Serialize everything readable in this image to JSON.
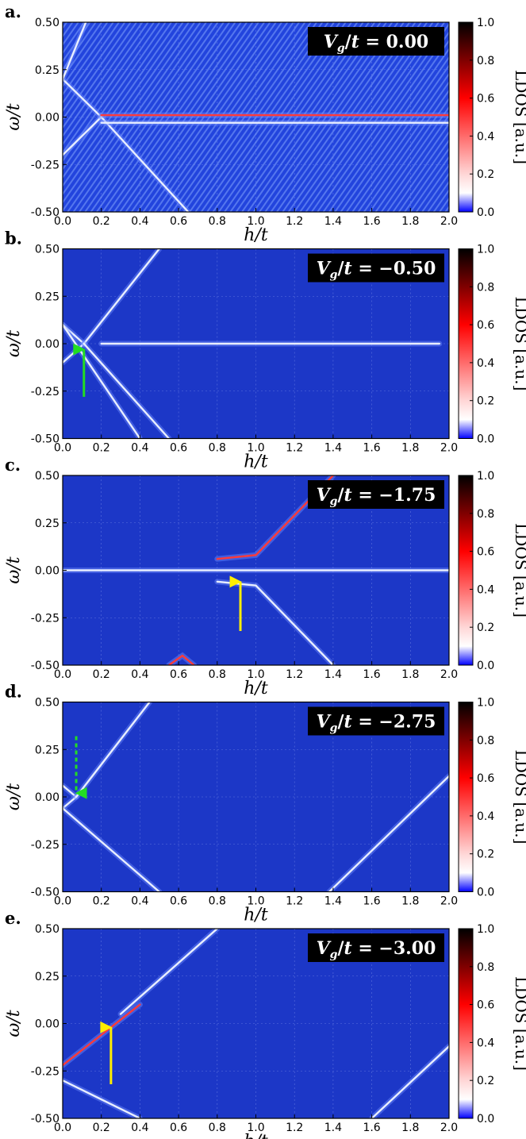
{
  "figure": {
    "panel_letters": [
      "a.",
      "b.",
      "c.",
      "d.",
      "e."
    ],
    "xlabel": "h/t",
    "ylabel": "ω/t",
    "colorbar_label": "LDOS [a.u.]",
    "colorbar_ticks": [
      "0.0",
      "0.2",
      "0.4",
      "0.6",
      "0.8",
      "1.0"
    ],
    "x_ticks": [
      "0.0",
      "0.2",
      "0.4",
      "0.6",
      "0.8",
      "1.0",
      "1.2",
      "1.4",
      "1.6",
      "1.8",
      "2.0"
    ],
    "y_ticks": [
      "-0.50",
      "-0.25",
      "0.00",
      "0.25",
      "0.50"
    ],
    "colors": {
      "background": "#1c37c7",
      "low": "#0000ff",
      "mid": "#ffffff",
      "high": "#ff0000",
      "max": "#000000",
      "green_arrow": "#22dd22",
      "yellow_arrow": "#ffee00"
    }
  },
  "chart_data": [
    {
      "type": "heatmap",
      "panel": "a.",
      "annotation": "V_g/t = 0.00",
      "xlabel": "h/t",
      "ylabel": "ω/t",
      "xlim": [
        0,
        2
      ],
      "ylim": [
        -0.5,
        0.5
      ],
      "zlim": [
        0,
        1
      ],
      "features": [
        {
          "kind": "line",
          "points": [
            [
              0,
              0.2
            ],
            [
              0.2,
              0
            ]
          ],
          "intensity": 0.3
        },
        {
          "kind": "line",
          "points": [
            [
              0,
              -0.2
            ],
            [
              0.2,
              0
            ]
          ],
          "intensity": 0.3
        },
        {
          "kind": "line",
          "points": [
            [
              0,
              0.2
            ],
            [
              0.12,
              0.5
            ]
          ],
          "intensity": 0.3
        },
        {
          "kind": "line",
          "points": [
            [
              0.2,
              0
            ],
            [
              0.65,
              -0.5
            ]
          ],
          "intensity": 0.3
        },
        {
          "kind": "line",
          "points": [
            [
              0.2,
              0.01
            ],
            [
              2.0,
              0.01
            ]
          ],
          "intensity": 0.5
        },
        {
          "kind": "line",
          "points": [
            [
              0.2,
              -0.03
            ],
            [
              2.0,
              -0.03
            ]
          ],
          "intensity": 0.25
        }
      ]
    },
    {
      "type": "heatmap",
      "panel": "b.",
      "annotation": "V_g/t = -0.50",
      "xlabel": "h/t",
      "ylabel": "ω/t",
      "xlim": [
        0,
        2
      ],
      "ylim": [
        -0.5,
        0.5
      ],
      "zlim": [
        0,
        1
      ],
      "arrows": [
        {
          "color": "green",
          "style": "solid",
          "x": 0.11,
          "y_from": -0.28,
          "y_to": -0.03
        }
      ],
      "features": [
        {
          "kind": "line",
          "points": [
            [
              0,
              0.1
            ],
            [
              0.11,
              0
            ]
          ],
          "intensity": 0.4
        },
        {
          "kind": "line",
          "points": [
            [
              0,
              -0.1
            ],
            [
              0.11,
              0
            ]
          ],
          "intensity": 0.4
        },
        {
          "kind": "line",
          "points": [
            [
              0.11,
              0
            ],
            [
              0.5,
              0.5
            ]
          ],
          "intensity": 0.3
        },
        {
          "kind": "line",
          "points": [
            [
              0.11,
              0
            ],
            [
              0.55,
              -0.5
            ]
          ],
          "intensity": 0.3
        },
        {
          "kind": "line",
          "points": [
            [
              0,
              0.1
            ],
            [
              0.4,
              -0.5
            ]
          ],
          "intensity": 0.25
        },
        {
          "kind": "line",
          "points": [
            [
              0.2,
              0
            ],
            [
              1.95,
              0
            ]
          ],
          "intensity": 0.35
        }
      ]
    },
    {
      "type": "heatmap",
      "panel": "c.",
      "annotation": "V_g/t = -1.75",
      "xlabel": "h/t",
      "ylabel": "ω/t",
      "xlim": [
        0,
        2
      ],
      "ylim": [
        -0.5,
        0.5
      ],
      "zlim": [
        0,
        1
      ],
      "arrows": [
        {
          "color": "yellow",
          "style": "solid",
          "x": 0.92,
          "y_from": -0.32,
          "y_to": -0.06
        }
      ],
      "features": [
        {
          "kind": "line",
          "points": [
            [
              0,
              0
            ],
            [
              2,
              0
            ]
          ],
          "intensity": 0.3
        },
        {
          "kind": "line",
          "points": [
            [
              0.8,
              0.06
            ],
            [
              1.0,
              0.08
            ],
            [
              1.4,
              0.5
            ]
          ],
          "intensity": 0.6
        },
        {
          "kind": "line",
          "points": [
            [
              0.8,
              -0.06
            ],
            [
              1.0,
              -0.08
            ],
            [
              1.4,
              -0.5
            ]
          ],
          "intensity": 0.3
        },
        {
          "kind": "line",
          "points": [
            [
              0.55,
              -0.5
            ],
            [
              0.62,
              -0.45
            ],
            [
              0.68,
              -0.5
            ]
          ],
          "intensity": 0.6
        }
      ]
    },
    {
      "type": "heatmap",
      "panel": "d.",
      "annotation": "V_g/t = -2.75",
      "xlabel": "h/t",
      "ylabel": "ω/t",
      "xlim": [
        0,
        2
      ],
      "ylim": [
        -0.5,
        0.5
      ],
      "zlim": [
        0,
        1
      ],
      "arrows": [
        {
          "color": "green",
          "style": "dashed",
          "x": 0.07,
          "y_from": 0.32,
          "y_to": 0.02
        }
      ],
      "features": [
        {
          "kind": "line",
          "points": [
            [
              0,
              0.06
            ],
            [
              0.07,
              0
            ]
          ],
          "intensity": 0.4
        },
        {
          "kind": "line",
          "points": [
            [
              0,
              -0.06
            ],
            [
              0.07,
              0
            ]
          ],
          "intensity": 0.4
        },
        {
          "kind": "line",
          "points": [
            [
              0.07,
              0
            ],
            [
              0.45,
              0.5
            ]
          ],
          "intensity": 0.3
        },
        {
          "kind": "line",
          "points": [
            [
              0,
              -0.06
            ],
            [
              0.5,
              -0.5
            ]
          ],
          "intensity": 0.3
        },
        {
          "kind": "line",
          "points": [
            [
              1.38,
              -0.5
            ],
            [
              2.0,
              0.11
            ]
          ],
          "intensity": 0.3
        }
      ]
    },
    {
      "type": "heatmap",
      "panel": "e.",
      "annotation": "V_g/t = -3.00",
      "xlabel": "h/t",
      "ylabel": "ω/t",
      "xlim": [
        0,
        2
      ],
      "ylim": [
        -0.5,
        0.5
      ],
      "zlim": [
        0,
        1
      ],
      "arrows": [
        {
          "color": "yellow",
          "style": "solid",
          "x": 0.25,
          "y_from": -0.32,
          "y_to": -0.02
        }
      ],
      "features": [
        {
          "kind": "line",
          "points": [
            [
              0,
              -0.22
            ],
            [
              0.4,
              0.1
            ]
          ],
          "intensity": 0.6
        },
        {
          "kind": "line",
          "points": [
            [
              0.3,
              0.05
            ],
            [
              0.8,
              0.5
            ]
          ],
          "intensity": 0.3
        },
        {
          "kind": "line",
          "points": [
            [
              0,
              -0.3
            ],
            [
              0.4,
              -0.5
            ]
          ],
          "intensity": 0.25
        },
        {
          "kind": "line",
          "points": [
            [
              1.6,
              -0.5
            ],
            [
              2.0,
              -0.12
            ]
          ],
          "intensity": 0.3
        }
      ]
    }
  ]
}
